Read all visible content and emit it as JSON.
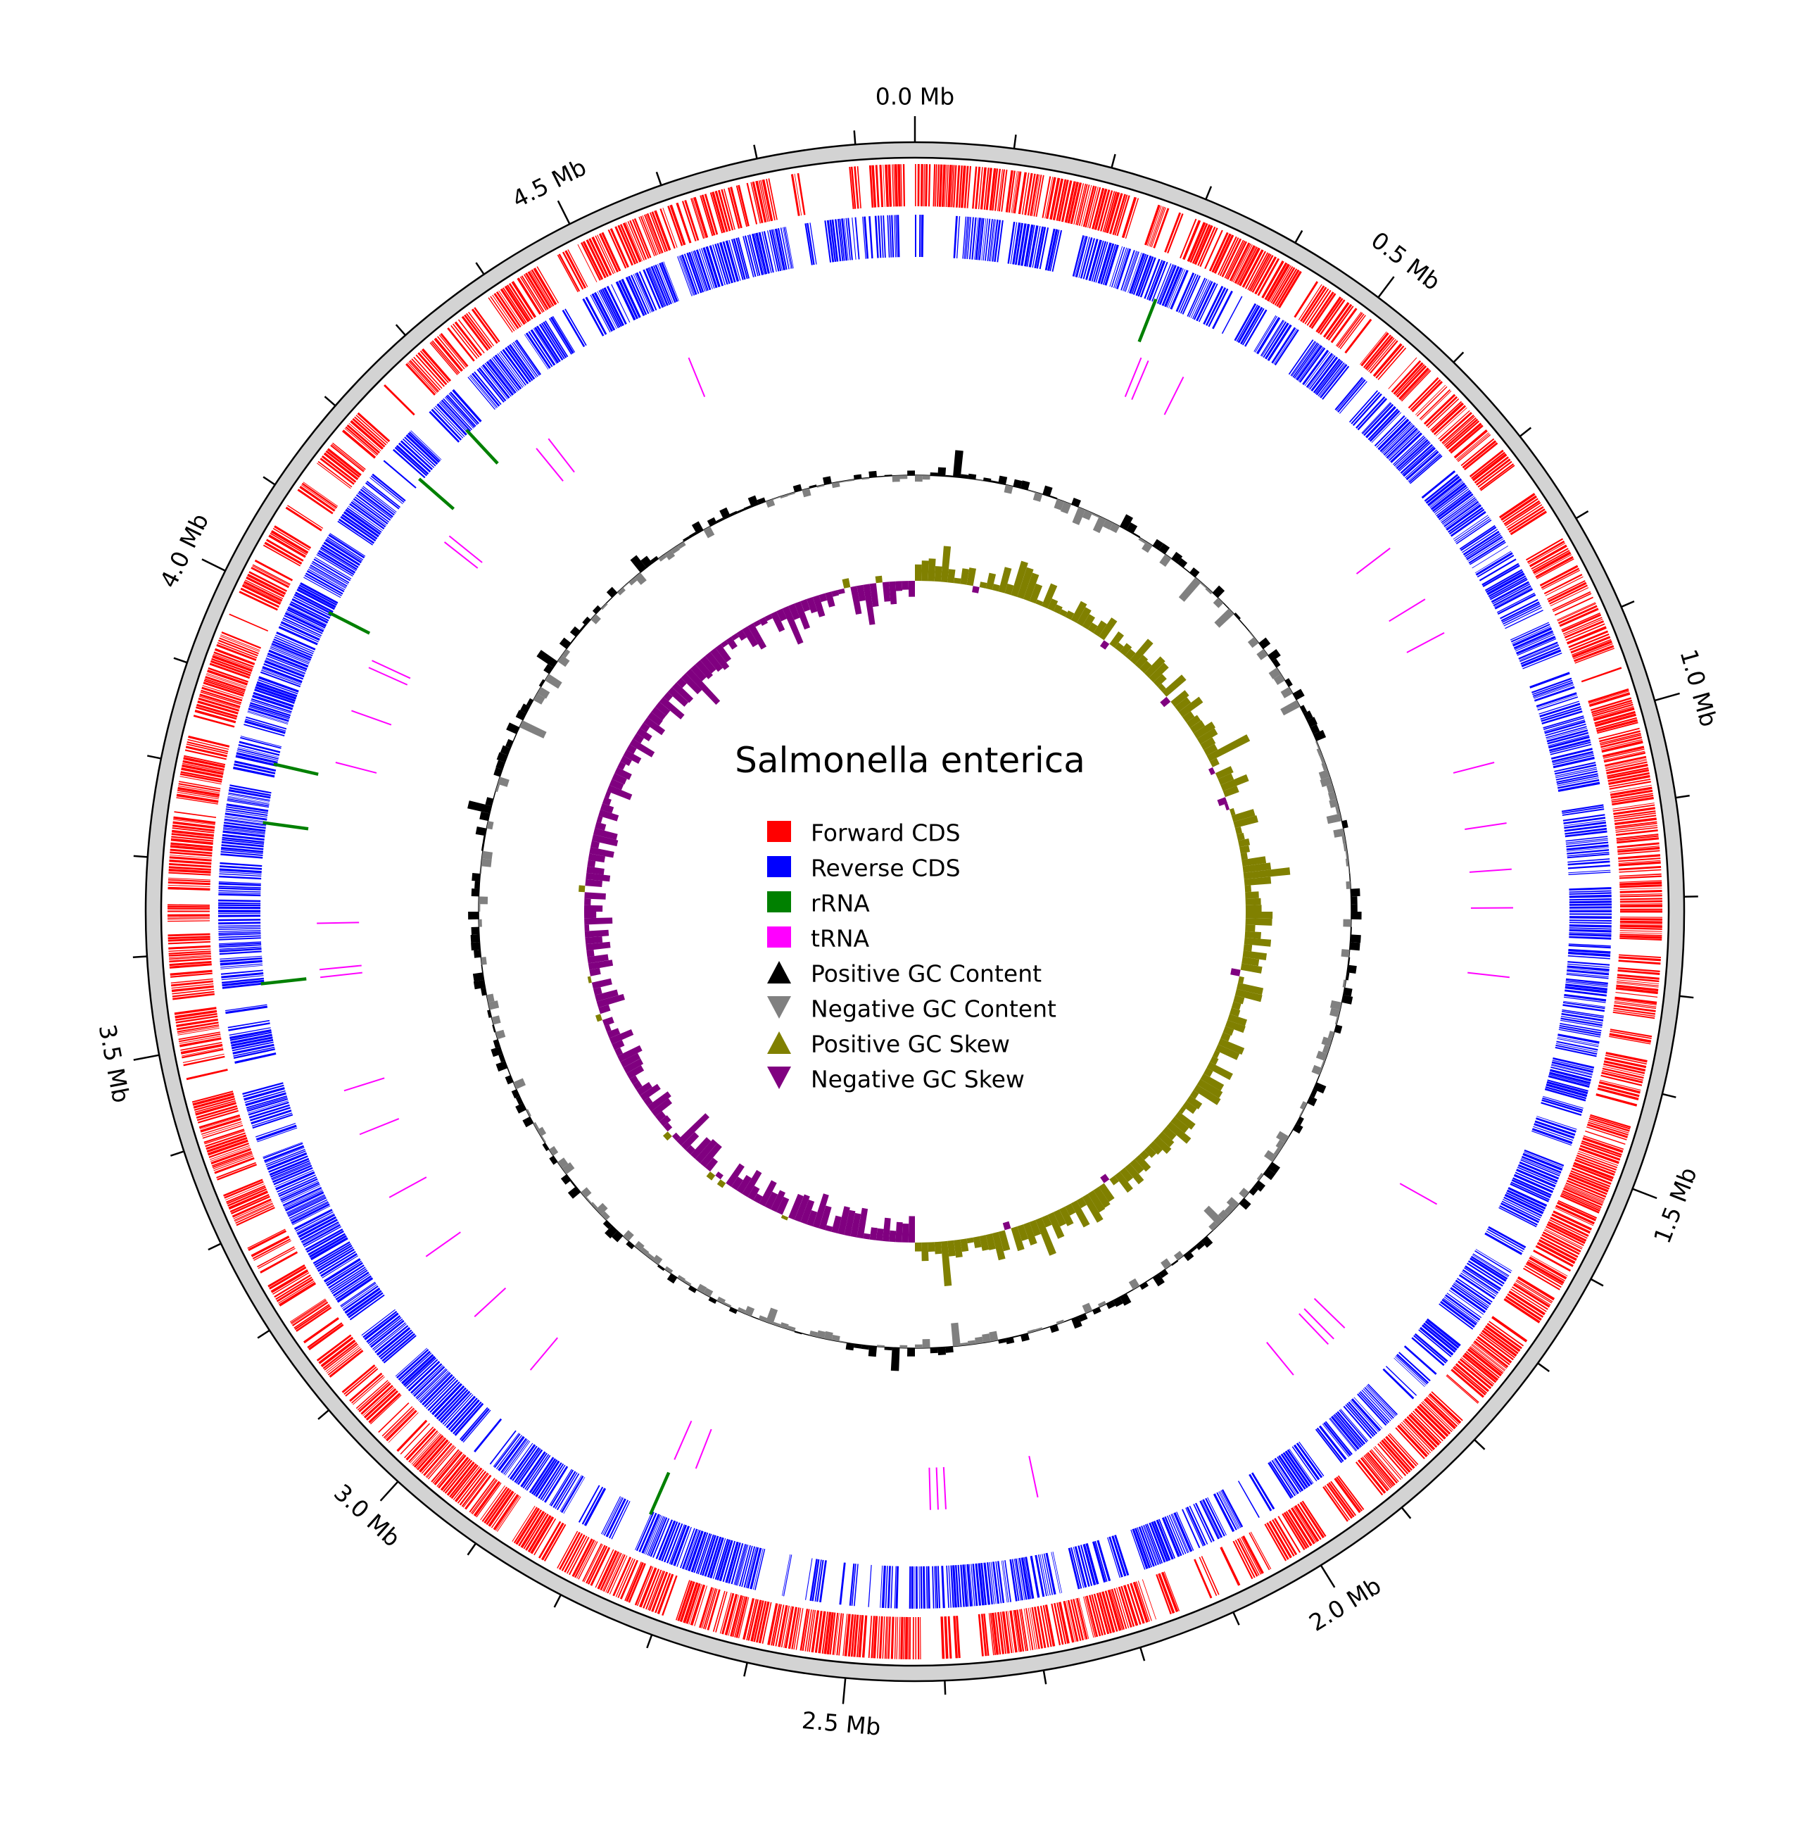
{
  "title": "Salmonella enterica",
  "genome_size_mb": 4.86,
  "axis": {
    "major_tick_labels": [
      "0.0 Mb",
      "0.5 Mb",
      "1.0 Mb",
      "1.5 Mb",
      "2.0 Mb",
      "2.5 Mb",
      "3.0 Mb",
      "3.5 Mb",
      "4.0 Mb",
      "4.5 Mb"
    ],
    "major_tick_positions_mb": [
      0.0,
      0.5,
      1.0,
      1.5,
      2.0,
      2.5,
      3.0,
      3.5,
      4.0,
      4.5
    ],
    "minor_tick_step_mb": 0.1
  },
  "legend": [
    {
      "label": "Forward CDS",
      "marker": "square",
      "color": "#ff0000"
    },
    {
      "label": "Reverse CDS",
      "marker": "square",
      "color": "#0000ff"
    },
    {
      "label": "rRNA",
      "marker": "square",
      "color": "#008000"
    },
    {
      "label": "tRNA",
      "marker": "square",
      "color": "#ff00ff"
    },
    {
      "label": "Positive GC Content",
      "marker": "triangle-up",
      "color": "#000000"
    },
    {
      "label": "Negative GC Content",
      "marker": "triangle-down",
      "color": "#808080"
    },
    {
      "label": "Positive GC Skew",
      "marker": "triangle-up",
      "color": "#808000"
    },
    {
      "label": "Negative GC Skew",
      "marker": "triangle-down",
      "color": "#800080"
    }
  ],
  "colors": {
    "forward_cds": "#ff0000",
    "reverse_cds": "#0000ff",
    "rrna": "#008000",
    "trna": "#ff00ff",
    "gc_content_positive": "#000000",
    "gc_content_negative": "#808080",
    "gc_skew_positive": "#808000",
    "gc_skew_negative": "#800080",
    "backbone": "#d3d3d3"
  },
  "chart_data": {
    "type": "circular-genome-map",
    "title": "Salmonella enterica",
    "genome_length_mb": 4.86,
    "rrna_positions_mb": [
      0.29,
      3.75,
      3.82,
      4.01,
      4.2,
      4.28,
      3.56,
      2.75
    ],
    "trna_positions_mb": [
      0.3,
      0.31,
      0.36,
      0.71,
      0.79,
      0.84,
      1.02,
      1.1,
      1.16,
      1.21,
      1.3,
      1.61,
      1.81,
      1.83,
      1.84,
      1.9,
      2.27,
      2.39,
      2.4,
      2.41,
      2.72,
      2.75,
      2.97,
      3.07,
      3.17,
      3.26,
      3.35,
      3.41,
      3.56,
      3.57,
      3.63,
      3.84,
      3.91,
      3.97,
      3.98,
      4.16,
      4.17,
      4.33,
      4.35,
      4.56
    ],
    "gc_skew_sign_change_mb": [
      0.0,
      2.43
    ],
    "gc_skew_summary": "positive from 0.0 to ~2.43 Mb (outer half), negative from ~2.43 to 4.86 Mb"
  }
}
